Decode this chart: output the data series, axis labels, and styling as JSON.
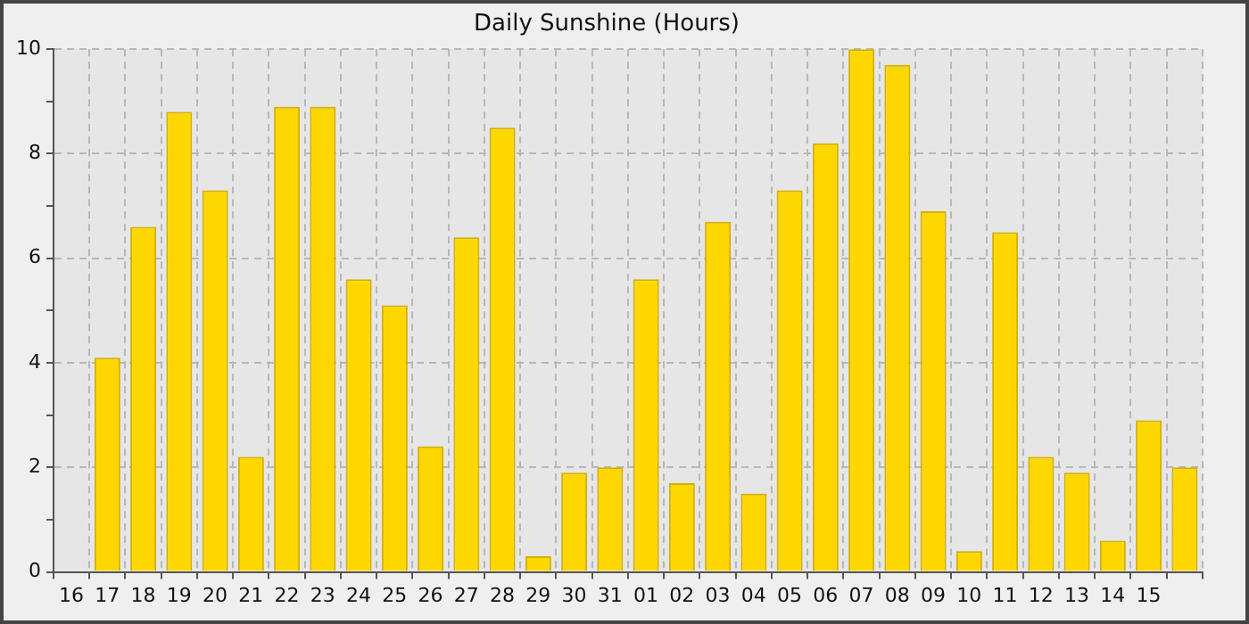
{
  "chart_data": {
    "type": "bar",
    "title": "Daily Sunshine (Hours)",
    "categories": [
      "16",
      "17",
      "18",
      "19",
      "20",
      "21",
      "22",
      "23",
      "24",
      "25",
      "26",
      "27",
      "28",
      "29",
      "30",
      "31",
      "01",
      "02",
      "03",
      "04",
      "05",
      "06",
      "07",
      "08",
      "09",
      "10",
      "11",
      "12",
      "13",
      "14",
      "15",
      null
    ],
    "values": [
      null,
      4.1,
      6.6,
      8.8,
      7.3,
      2.2,
      8.9,
      8.9,
      5.6,
      5.1,
      2.4,
      6.4,
      8.5,
      0.3,
      1.9,
      2.0,
      5.6,
      1.7,
      6.7,
      1.5,
      7.3,
      8.2,
      10.0,
      9.7,
      6.9,
      0.4,
      6.5,
      2.2,
      1.9,
      0.6,
      2.9,
      2.0
    ],
    "color": "#ffd700",
    "ylim": [
      0,
      10
    ],
    "yticks": [
      0,
      {
        "value": 1,
        "label": null
      },
      2,
      {
        "value": 3,
        "label": null
      },
      4,
      {
        "value": 5,
        "label": null
      },
      6,
      {
        "value": 7,
        "label": null
      },
      8,
      {
        "value": 9,
        "label": null
      },
      10
    ],
    "grid": true,
    "legend": false
  }
}
